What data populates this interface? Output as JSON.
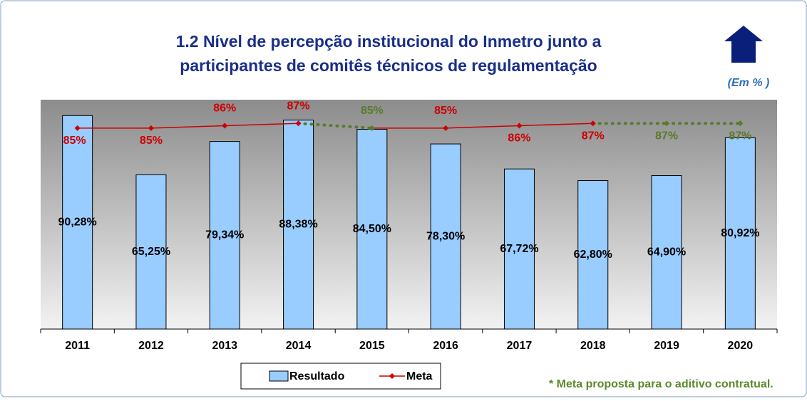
{
  "chart_data": {
    "type": "bar_line",
    "title": [
      "1.2 Nível de percepção institucional do Inmetro junto a",
      "participantes de comitês técnicos de regulamentação"
    ],
    "unit_note": "(Em % )",
    "footnote": "* Meta proposta para o aditivo contratual.",
    "categories": [
      "2011",
      "2012",
      "2013",
      "2014",
      "2015",
      "2016",
      "2017",
      "2018",
      "2019",
      "2020"
    ],
    "ylim": [
      0,
      97
    ],
    "series": [
      {
        "name": "Resultado",
        "type": "bar",
        "color": "#99ccff",
        "values": [
          90.28,
          65.25,
          79.34,
          88.38,
          84.5,
          78.3,
          67.72,
          62.8,
          64.9,
          80.92
        ],
        "value_labels": [
          "90,28%",
          "65,25%",
          "79,34%",
          "88,38%",
          "84,50%",
          "78,30%",
          "67,72%",
          "62,80%",
          "64,90%",
          "80,92%"
        ]
      },
      {
        "name": "Meta",
        "type": "line",
        "color": "#cc0000",
        "proposed_color": "#5a7a2a",
        "proposed": [
          false,
          false,
          false,
          false,
          true,
          false,
          false,
          false,
          true,
          true
        ],
        "values": [
          85,
          85,
          86,
          87,
          85,
          85,
          86,
          87,
          87,
          87
        ],
        "value_labels": [
          "85%",
          "85%",
          "86%",
          "87%",
          "85%",
          "85%",
          "86%",
          "87%",
          "87%",
          "87%"
        ]
      }
    ]
  }
}
